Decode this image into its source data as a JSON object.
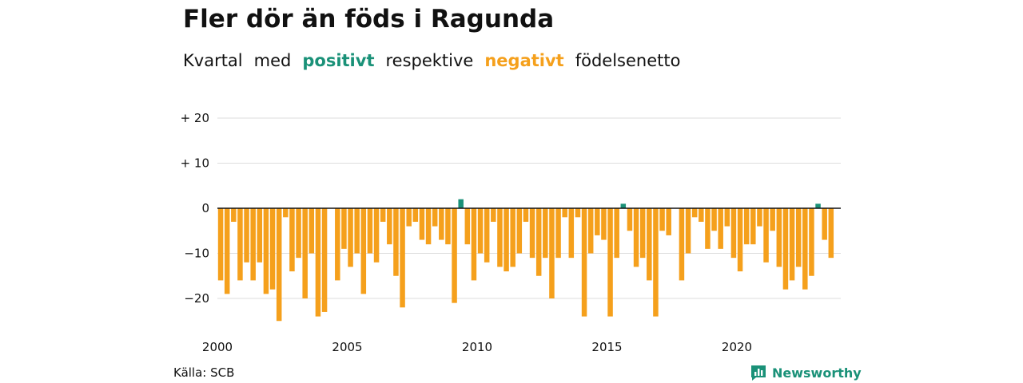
{
  "title": "Fler dör än föds i Ragunda",
  "subtitle": {
    "w1": "Kvartal",
    "w2": "med",
    "positive": "positivt",
    "w4": "respektive",
    "negative": "negativt",
    "w6": "födelsenetto"
  },
  "source": "Källa: SCB",
  "brand": {
    "name": "Newsworthy",
    "icon": "bar-chart-speech-bubble-icon"
  },
  "colors": {
    "positive": "#1a9178",
    "negative": "#f5a01c",
    "grid": "#dddddd",
    "axis": "#111111"
  },
  "chart_data": {
    "type": "bar",
    "x_start": 2000,
    "x_end": 2024,
    "quarters_per_year": 4,
    "ylim": [
      -28,
      23
    ],
    "grid": true,
    "y_ticks": [
      {
        "value": 20,
        "label": "+ 20"
      },
      {
        "value": 10,
        "label": "+ 10"
      },
      {
        "value": 0,
        "label": "0"
      },
      {
        "value": -10,
        "label": "−10"
      },
      {
        "value": -20,
        "label": "−20"
      }
    ],
    "x_ticks": [
      {
        "value": 2000,
        "label": "2000"
      },
      {
        "value": 2005,
        "label": "2005"
      },
      {
        "value": 2010,
        "label": "2010"
      },
      {
        "value": 2015,
        "label": "2015"
      },
      {
        "value": 2020,
        "label": "2020"
      }
    ],
    "values": [
      -16,
      -19,
      -3,
      -16,
      -12,
      -16,
      -12,
      -19,
      -18,
      -25,
      -2,
      -14,
      -11,
      -20,
      -10,
      -24,
      -23,
      0,
      -16,
      -9,
      -13,
      -10,
      -19,
      -10,
      -12,
      -3,
      -8,
      -15,
      -22,
      -4,
      -3,
      -7,
      -8,
      -4,
      -7,
      -8,
      -21,
      2,
      -8,
      -16,
      -10,
      -12,
      -3,
      -13,
      -14,
      -13,
      -10,
      -3,
      -11,
      -15,
      -11,
      -20,
      -11,
      -2,
      -11,
      -2,
      -24,
      -10,
      -6,
      -7,
      -24,
      -11,
      1,
      -5,
      -13,
      -11,
      -16,
      -24,
      -5,
      -6,
      0,
      -16,
      -10,
      -2,
      -3,
      -9,
      -5,
      -9,
      -4,
      -11,
      -14,
      -8,
      -8,
      -4,
      -12,
      -5,
      -13,
      -18,
      -16,
      -13,
      -18,
      -15,
      1,
      -7,
      -11
    ]
  }
}
